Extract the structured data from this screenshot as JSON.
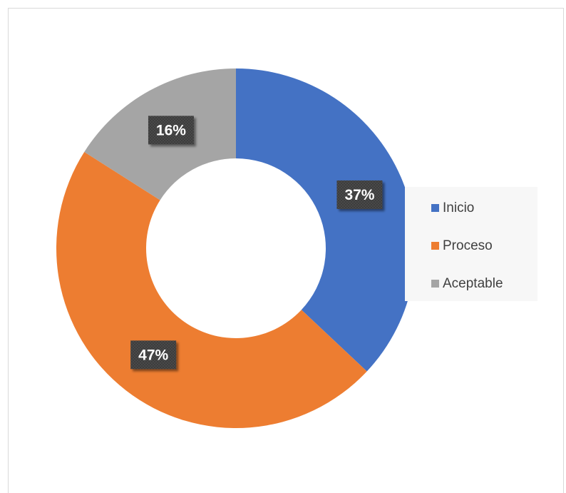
{
  "chart_data": {
    "type": "pie",
    "title": "",
    "legend_position": "right",
    "slices": [
      {
        "label": "Inicio",
        "value": 37,
        "display": "37%",
        "color": "#4472c4"
      },
      {
        "label": "Proceso",
        "value": 47,
        "display": "47%",
        "color": "#ed7d31"
      },
      {
        "label": "Aceptable",
        "value": 16,
        "display": "16%",
        "color": "#a5a5a5"
      }
    ]
  }
}
